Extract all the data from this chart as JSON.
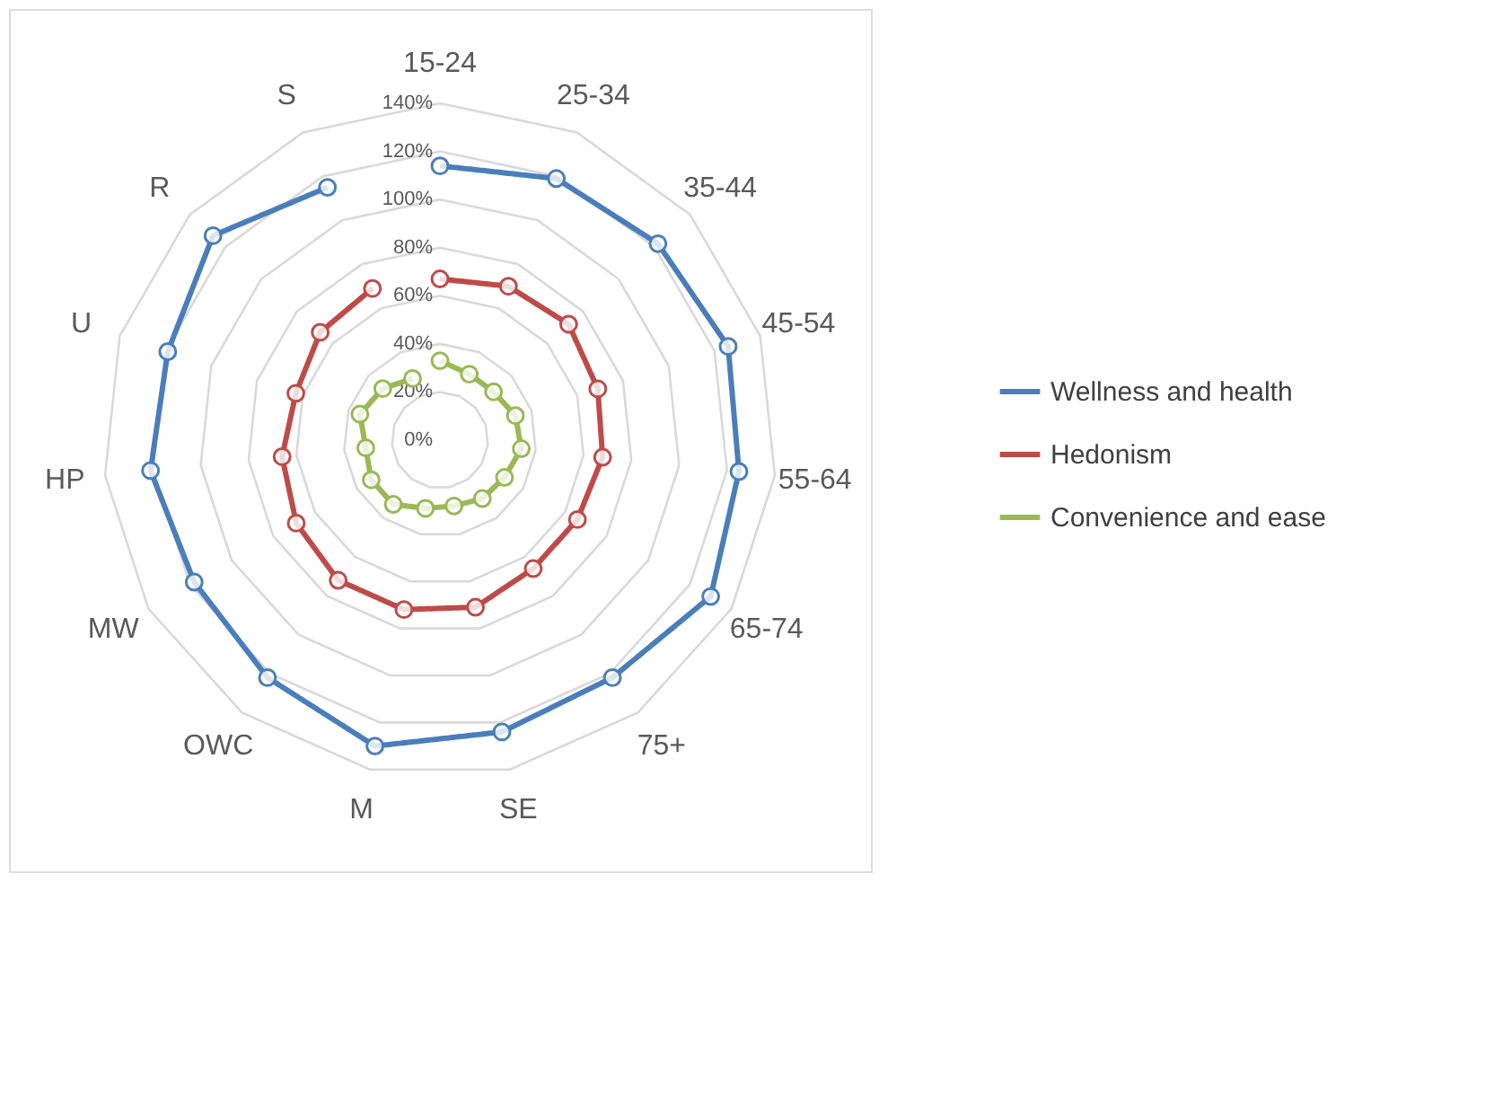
{
  "chart_data": {
    "type": "radar",
    "categories": [
      "15-24",
      "25-34",
      "35-44",
      "45-54",
      "55-64",
      "65-74",
      "75+",
      "SE",
      "M",
      "OWC",
      "MW",
      "HP",
      "U",
      "R",
      "S"
    ],
    "series": [
      {
        "name": "Wellness and health",
        "color": "#4a7ebb",
        "values": [
          114,
          119,
          122,
          126,
          125,
          130,
          122,
          124,
          130,
          122,
          118,
          121,
          119,
          127,
          115
        ]
      },
      {
        "name": "Hedonism",
        "color": "#be4b48",
        "values": [
          67,
          70,
          72,
          69,
          68,
          66,
          66,
          71,
          72,
          72,
          69,
          66,
          63,
          67,
          69
        ]
      },
      {
        "name": "Convenience and ease",
        "color": "#98b954",
        "values": [
          33,
          30,
          30,
          33,
          34,
          31,
          30,
          28,
          29,
          33,
          33,
          31,
          35,
          32,
          28
        ]
      }
    ],
    "ylim": [
      0,
      140
    ],
    "yticks": [
      {
        "value": 0,
        "label": "0%"
      },
      {
        "value": 20,
        "label": "20%"
      },
      {
        "value": 40,
        "label": "40%"
      },
      {
        "value": 60,
        "label": "60%"
      },
      {
        "value": 80,
        "label": "80%"
      },
      {
        "value": 100,
        "label": "100%"
      },
      {
        "value": 120,
        "label": "120%"
      },
      {
        "value": 140,
        "label": "140%"
      }
    ],
    "grid": true,
    "legend": "right",
    "marker": "circle",
    "line_style": "solid"
  }
}
